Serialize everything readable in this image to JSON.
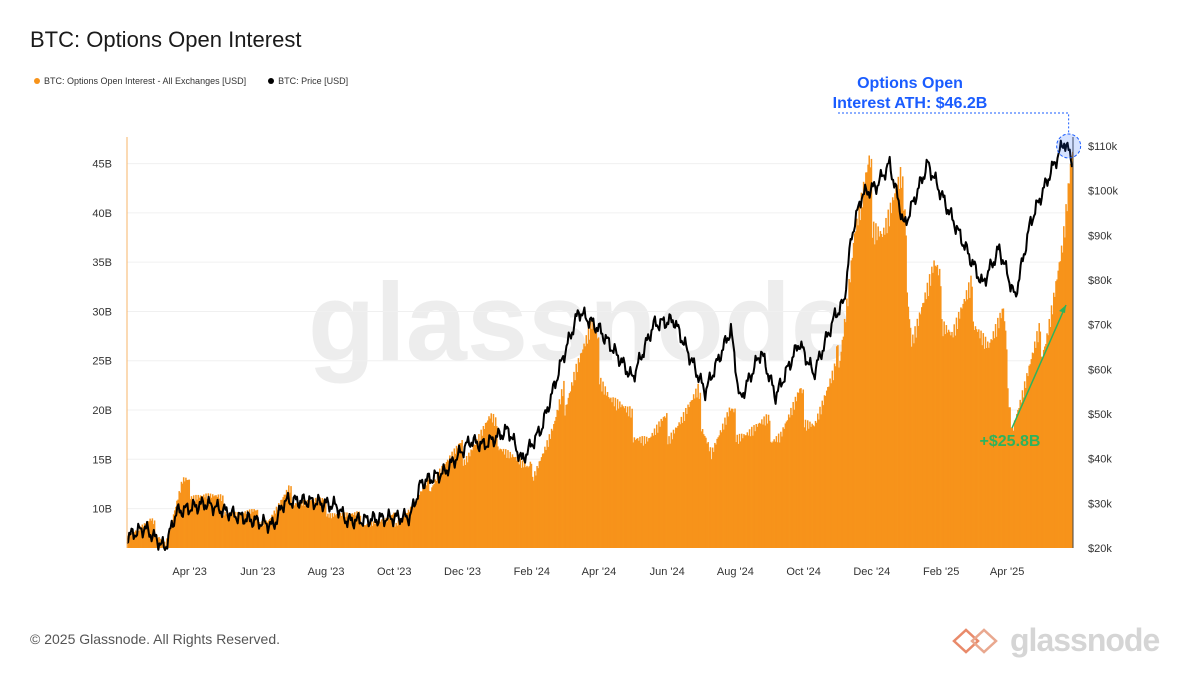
{
  "colors": {
    "oi": "#f7931a",
    "price": "#000000",
    "annotation_blue": "#1a5cff",
    "annotation_green": "#2db35d"
  },
  "footer": {
    "copyright": "© 2025 Glassnode. All Rights Reserved.",
    "logo_text": "glassnode"
  },
  "watermark": "glassnode",
  "chart_data": {
    "type": "bar+line",
    "title": "BTC: Options Open Interest",
    "legend_position": "top-left",
    "grid": true,
    "legend": [
      {
        "label": "BTC: Options Open Interest - All Exchanges [USD]",
        "color": "#f7931a"
      },
      {
        "label": "BTC: Price [USD]",
        "color": "#000000"
      }
    ],
    "x_range": [
      "2023-02-04",
      "2025-05-29"
    ],
    "x_ticks": [
      "Apr '23",
      "Jun '23",
      "Aug '23",
      "Oct '23",
      "Dec '23",
      "Feb '24",
      "Apr '24",
      "Jun '24",
      "Aug '24",
      "Oct '24",
      "Dec '24",
      "Feb '25",
      "Apr '25"
    ],
    "x_tick_dates": [
      "2023-04-01",
      "2023-06-01",
      "2023-08-01",
      "2023-10-01",
      "2023-12-01",
      "2024-02-01",
      "2024-04-01",
      "2024-06-01",
      "2024-08-01",
      "2024-10-01",
      "2024-12-01",
      "2025-02-01",
      "2025-04-01"
    ],
    "y_left": {
      "ticks": [
        "10B",
        "15B",
        "20B",
        "25B",
        "30B",
        "35B",
        "40B",
        "45B"
      ],
      "tick_values": [
        10,
        15,
        20,
        25,
        30,
        35,
        40,
        45
      ],
      "range": [
        6,
        47.7
      ],
      "unit": "USD billions"
    },
    "y_right": {
      "ticks": [
        "$20k",
        "$30k",
        "$40k",
        "$50k",
        "$60k",
        "$70k",
        "$80k",
        "$90k",
        "$100k",
        "$110k"
      ],
      "tick_values": [
        20,
        30,
        40,
        50,
        60,
        70,
        80,
        90,
        100,
        110
      ],
      "range": [
        20,
        112
      ],
      "unit": "USD thousands"
    },
    "series": [
      {
        "name": "BTC: Options Open Interest - All Exchanges [USD]",
        "axis": "left",
        "type": "bar",
        "points": [
          [
            "2023-02-04",
            8
          ],
          [
            "2023-02-25",
            9
          ],
          [
            "2023-03-10",
            7
          ],
          [
            "2023-03-25",
            13
          ],
          [
            "2023-04-15",
            12
          ],
          [
            "2023-05-15",
            10
          ],
          [
            "2023-06-10",
            9.5
          ],
          [
            "2023-06-28",
            12
          ],
          [
            "2023-07-25",
            11
          ],
          [
            "2023-08-25",
            9.5
          ],
          [
            "2023-09-25",
            9
          ],
          [
            "2023-10-20",
            11
          ],
          [
            "2023-11-10",
            15
          ],
          [
            "2023-12-05",
            17
          ],
          [
            "2023-12-25",
            19.5
          ],
          [
            "2024-01-10",
            17
          ],
          [
            "2024-01-28",
            14
          ],
          [
            "2024-02-20",
            19
          ],
          [
            "2024-03-10",
            26
          ],
          [
            "2024-03-25",
            29
          ],
          [
            "2024-04-10",
            23
          ],
          [
            "2024-04-26",
            20
          ],
          [
            "2024-05-15",
            18
          ],
          [
            "2024-06-10",
            20
          ],
          [
            "2024-06-28",
            22
          ],
          [
            "2024-07-10",
            17
          ],
          [
            "2024-07-26",
            20
          ],
          [
            "2024-08-10",
            19
          ],
          [
            "2024-09-10",
            19
          ],
          [
            "2024-09-27",
            22
          ],
          [
            "2024-10-10",
            20
          ],
          [
            "2024-10-28",
            24
          ],
          [
            "2024-11-15",
            40
          ],
          [
            "2024-11-28",
            45
          ],
          [
            "2024-12-10",
            41
          ],
          [
            "2024-12-27",
            44
          ],
          [
            "2025-01-05",
            30
          ],
          [
            "2025-01-25",
            35
          ],
          [
            "2025-02-10",
            30
          ],
          [
            "2025-02-28",
            33
          ],
          [
            "2025-03-15",
            28
          ],
          [
            "2025-03-28",
            30
          ],
          [
            "2025-04-05",
            20
          ],
          [
            "2025-04-20",
            25
          ],
          [
            "2025-05-05",
            30
          ],
          [
            "2025-05-20",
            38
          ],
          [
            "2025-05-29",
            46.2
          ]
        ]
      },
      {
        "name": "BTC: Price [USD]",
        "axis": "right",
        "type": "line",
        "points": [
          [
            "2023-02-04",
            22.5
          ],
          [
            "2023-02-20",
            24.5
          ],
          [
            "2023-03-10",
            20
          ],
          [
            "2023-03-20",
            28
          ],
          [
            "2023-04-15",
            30
          ],
          [
            "2023-05-15",
            27
          ],
          [
            "2023-06-15",
            25
          ],
          [
            "2023-06-25",
            30.5
          ],
          [
            "2023-07-15",
            30.5
          ],
          [
            "2023-08-10",
            29.5
          ],
          [
            "2023-08-20",
            26
          ],
          [
            "2023-09-15",
            26.5
          ],
          [
            "2023-10-15",
            27
          ],
          [
            "2023-10-25",
            34.5
          ],
          [
            "2023-11-15",
            37
          ],
          [
            "2023-12-08",
            44
          ],
          [
            "2023-12-20",
            43
          ],
          [
            "2024-01-11",
            46.5
          ],
          [
            "2024-01-23",
            39.5
          ],
          [
            "2024-02-10",
            47
          ],
          [
            "2024-02-28",
            62
          ],
          [
            "2024-03-14",
            73
          ],
          [
            "2024-04-01",
            69
          ],
          [
            "2024-04-15",
            64
          ],
          [
            "2024-05-01",
            58
          ],
          [
            "2024-05-20",
            70
          ],
          [
            "2024-06-07",
            71
          ],
          [
            "2024-07-05",
            55
          ],
          [
            "2024-07-28",
            69
          ],
          [
            "2024-08-05",
            53
          ],
          [
            "2024-08-24",
            64
          ],
          [
            "2024-09-06",
            54
          ],
          [
            "2024-09-27",
            66
          ],
          [
            "2024-10-10",
            59
          ],
          [
            "2024-10-29",
            72
          ],
          [
            "2024-11-06",
            75
          ],
          [
            "2024-11-13",
            90
          ],
          [
            "2024-11-22",
            99
          ],
          [
            "2024-12-05",
            101
          ],
          [
            "2024-12-17",
            106
          ],
          [
            "2024-12-30",
            92
          ],
          [
            "2025-01-20",
            106
          ],
          [
            "2025-02-05",
            97
          ],
          [
            "2025-02-25",
            86
          ],
          [
            "2025-03-10",
            79
          ],
          [
            "2025-03-25",
            87
          ],
          [
            "2025-04-08",
            76
          ],
          [
            "2025-04-22",
            93
          ],
          [
            "2025-05-08",
            103
          ],
          [
            "2025-05-22",
            111
          ],
          [
            "2025-05-29",
            107
          ]
        ]
      }
    ],
    "annotations": [
      {
        "text": "Options Open Interest ATH: $46.2B",
        "line1": "Options Open",
        "line2": "Interest ATH: $46.2B",
        "color": "#1a5cff",
        "date": "2025-05-26",
        "value": 46.2
      },
      {
        "text": "+$25.8B",
        "color": "#2db35d",
        "arrow_from": [
          "2025-04-05",
          20.4
        ],
        "arrow_to": [
          "2025-05-26",
          30.5
        ]
      }
    ]
  }
}
